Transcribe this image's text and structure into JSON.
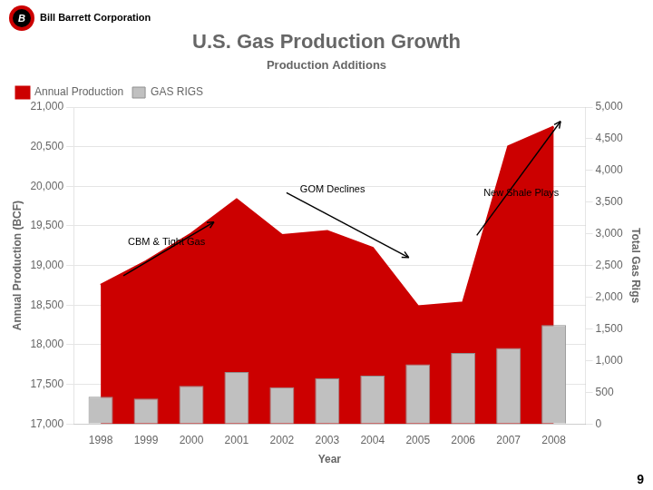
{
  "chart_data": {
    "type": "bar",
    "title": "U.S. Gas Production Growth",
    "subtitle": "Production Additions",
    "company_name": "Bill Barrett Corporation",
    "logo_text": "B",
    "page_number": "9",
    "xlabel": "Year",
    "ylabel": "Annual Production (BCF)",
    "y2label": "Total Gas Rigs",
    "x": [
      1998,
      1999,
      2000,
      2001,
      2002,
      2003,
      2004,
      2005,
      2006,
      2007,
      2008
    ],
    "xlim": [
      1997.4,
      2008.7
    ],
    "xticks": [
      1998,
      1999,
      2000,
      2001,
      2002,
      2003,
      2004,
      2005,
      2006,
      2007,
      2008
    ],
    "series": [
      {
        "name": "Annual Production",
        "type": "area",
        "color": "#CC0000",
        "values": [
          18750,
          19050,
          19400,
          19830,
          19380,
          19430,
          19220,
          18480,
          18530,
          20500,
          20750
        ]
      },
      {
        "name": "GAS RIGS",
        "type": "bar",
        "color": "#C0C0C0",
        "axis": "y2",
        "values": [
          430,
          400,
          600,
          820,
          580,
          720,
          760,
          940,
          1120,
          1200,
          1560
        ]
      }
    ],
    "ylim": [
      17000,
      21000
    ],
    "yticks": [
      {
        "value": 17000,
        "label": "17,000"
      },
      {
        "value": 17500,
        "label": "17,500"
      },
      {
        "value": 18000,
        "label": "18,000"
      },
      {
        "value": 18500,
        "label": "18,500"
      },
      {
        "value": 19000,
        "label": "19,000"
      },
      {
        "value": 19500,
        "label": "19,500"
      },
      {
        "value": 20000,
        "label": "20,000"
      },
      {
        "value": 20500,
        "label": "20,500"
      },
      {
        "value": 21000,
        "label": "21,000"
      }
    ],
    "y2lim": [
      0,
      5000
    ],
    "y2ticks": [
      0,
      500,
      {
        "value": 1000,
        "label": "1,000"
      },
      {
        "value": 1500,
        "label": "1,500"
      },
      {
        "value": 2000,
        "label": "2,000"
      },
      {
        "value": 2500,
        "label": "2,500"
      },
      {
        "value": 3000,
        "label": "3,000"
      },
      {
        "value": 3500,
        "label": "3,500"
      },
      {
        "value": 4000,
        "label": "4,000"
      },
      {
        "value": 4500,
        "label": "4,500"
      },
      {
        "value": 5000,
        "label": "5,000"
      }
    ],
    "grid": true,
    "legend": "upper left",
    "annotations": [
      {
        "text": "CBM & Tight Gas",
        "x": 1998.6,
        "y": 19230,
        "arrow": [
          [
            1998.5,
            18870
          ],
          [
            2000.5,
            19550
          ]
        ]
      },
      {
        "text": "GOM Declines",
        "x": 2002.4,
        "y": 19890,
        "arrow": [
          [
            2002.1,
            19920
          ],
          [
            2004.8,
            19100
          ]
        ]
      },
      {
        "text": "New Shale Plays",
        "x": 2006.45,
        "y": 19850,
        "arrow": [
          [
            2006.3,
            19380
          ],
          [
            2008.15,
            20820
          ]
        ]
      }
    ]
  }
}
